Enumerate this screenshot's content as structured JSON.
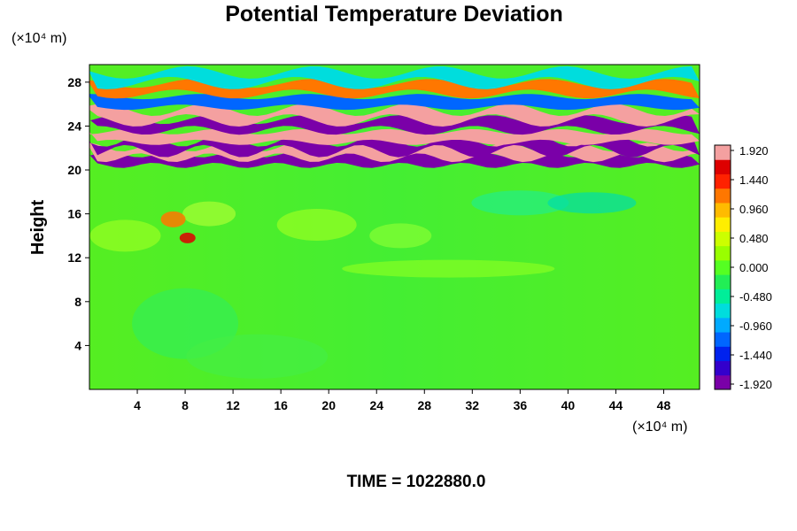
{
  "chart_data": {
    "type": "heatmap",
    "title": "Potential Temperature Deviation",
    "ylabel": "Height",
    "xlabel": "",
    "x_unit": "(×10⁴ m)",
    "y_unit": "(×10⁴ m)",
    "xlim": [
      0,
      51
    ],
    "ylim": [
      0,
      29.6
    ],
    "x_ticks": [
      4,
      8,
      12,
      16,
      20,
      24,
      28,
      32,
      36,
      40,
      44,
      48
    ],
    "y_ticks": [
      4,
      8,
      12,
      16,
      20,
      24,
      28
    ],
    "colorbar": {
      "min": -1.92,
      "max": 1.92,
      "labels": [
        "1.920",
        "1.440",
        "0.960",
        "0.480",
        "0.000",
        "-0.480",
        "-0.960",
        "-1.440",
        "-1.920"
      ],
      "colors": [
        "#7a00a8",
        "#3300cc",
        "#0022ee",
        "#0066ff",
        "#00aaff",
        "#00dddd",
        "#00ee99",
        "#22ee55",
        "#55ff22",
        "#99ff00",
        "#ccff00",
        "#ffee00",
        "#ffbb00",
        "#ff7700",
        "#ff2200",
        "#dd0000",
        "#f4a0a0"
      ]
    },
    "bands": [
      {
        "y": 20.9,
        "value": -1.92
      },
      {
        "y": 21.6,
        "value": 1.92
      },
      {
        "y": 22.2,
        "value": -1.92
      },
      {
        "y": 23.0,
        "value": 1.92
      },
      {
        "y": 24.1,
        "value": -1.92
      },
      {
        "y": 25.0,
        "value": 1.92
      },
      {
        "y": 26.2,
        "value": -1.1
      },
      {
        "y": 27.4,
        "value": 1.3
      },
      {
        "y": 28.4,
        "value": -0.6
      }
    ],
    "annotation": "TIME = 1022880.0"
  }
}
